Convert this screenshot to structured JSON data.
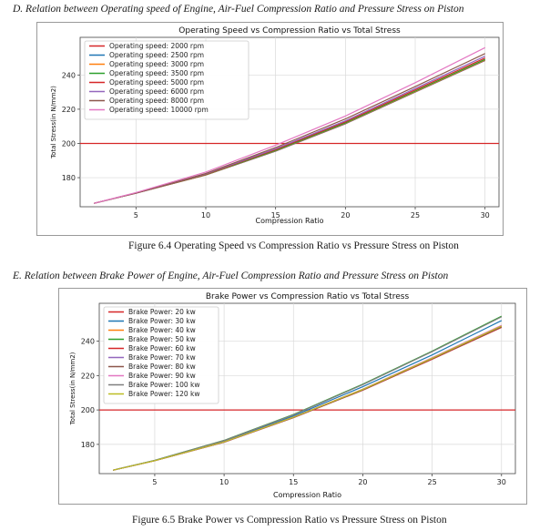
{
  "section_d": {
    "heading": "D.   Relation between Operating speed of Engine, Air-Fuel Compression Ratio and Pressure Stress on Piston",
    "caption": "Figure 6.4 Operating Speed vs Compression Ratio vs Pressure Stress on Piston"
  },
  "section_e": {
    "heading": "E.   Relation between Brake Power of Engine, Air-Fuel Compression Ratio and Pressure Stress on Piston",
    "caption": "Figure 6.5 Brake Power vs Compression Ratio vs Pressure Stress on Piston"
  },
  "chart_data": [
    {
      "type": "line",
      "title": "Operating Speed vs Compression Ratio vs Total Stress",
      "xlabel": "Compression Ratio",
      "ylabel": "Total Stress(in N/mm2)",
      "xlim": [
        1,
        31
      ],
      "ylim": [
        163,
        262
      ],
      "xticks": [
        5,
        10,
        15,
        20,
        25,
        30
      ],
      "yticks": [
        180,
        200,
        220,
        240
      ],
      "grid": true,
      "legend_position": "top-left",
      "x": [
        2,
        5,
        10,
        15,
        20,
        25,
        30
      ],
      "hline": {
        "y": 200,
        "color": "#d62728"
      },
      "series": [
        {
          "name": "Operating speed: 2000 rpm",
          "color": "#d62728",
          "values": [
            165,
            171,
            181.5,
            195.5,
            211.5,
            230,
            248.5
          ]
        },
        {
          "name": "Operating speed: 2500 rpm",
          "color": "#1f77b4",
          "values": [
            165,
            171,
            181.6,
            195.6,
            211.6,
            230.1,
            248.6
          ]
        },
        {
          "name": "Operating speed: 3000 rpm",
          "color": "#ff7f0e",
          "values": [
            165,
            171,
            181.7,
            195.8,
            211.8,
            230.3,
            248.8
          ]
        },
        {
          "name": "Operating speed: 3500 rpm",
          "color": "#2ca02c",
          "values": [
            165,
            171,
            181.8,
            196,
            212,
            230.6,
            249.1
          ]
        },
        {
          "name": "Operating speed: 5000 rpm",
          "color": "#d62728",
          "values": [
            165,
            171,
            182,
            196.4,
            212.6,
            231.3,
            249.9
          ]
        },
        {
          "name": "Operating speed: 6000 rpm",
          "color": "#9467bd",
          "values": [
            165,
            171,
            182.2,
            196.9,
            213.2,
            232.1,
            251
          ]
        },
        {
          "name": "Operating speed: 8000 rpm",
          "color": "#8c564b",
          "values": [
            165,
            171,
            182.5,
            197.6,
            214.3,
            233.2,
            252.5
          ]
        },
        {
          "name": "Operating speed: 10000 rpm",
          "color": "#e377c2",
          "values": [
            165,
            171.3,
            183.3,
            199,
            216,
            235.5,
            256
          ]
        }
      ]
    },
    {
      "type": "line",
      "title": "Brake Power vs Compression Ratio vs Total Stress",
      "xlabel": "Compression Ratio",
      "ylabel": "Total Stress(in N/mm2)",
      "xlim": [
        1,
        31
      ],
      "ylim": [
        163,
        262
      ],
      "xticks": [
        5,
        10,
        15,
        20,
        25,
        30
      ],
      "yticks": [
        180,
        200,
        220,
        240
      ],
      "grid": true,
      "legend_position": "top-left",
      "x": [
        2,
        5,
        10,
        15,
        20,
        25,
        30
      ],
      "hline": {
        "y": 200,
        "color": "#d62728"
      },
      "series": [
        {
          "name": "Brake Power: 20 kw",
          "color": "#d62728",
          "values": [
            165,
            170.5,
            181.2,
            195.5,
            211.5,
            229.5,
            248
          ]
        },
        {
          "name": "Brake Power: 30 kw",
          "color": "#1f77b4",
          "values": [
            165,
            170.6,
            181.8,
            196.5,
            213.5,
            232,
            252
          ]
        },
        {
          "name": "Brake Power: 40 kw",
          "color": "#ff7f0e",
          "values": [
            165,
            170.5,
            181.3,
            195.6,
            211.7,
            229.8,
            248.4
          ]
        },
        {
          "name": "Brake Power: 50 kw",
          "color": "#2ca02c",
          "values": [
            165,
            170.7,
            182.3,
            197.4,
            215,
            234.2,
            254.5
          ]
        },
        {
          "name": "Brake Power: 60 kw",
          "color": "#d62728",
          "values": [
            165,
            170.5,
            181.4,
            195.8,
            212,
            230.2,
            248.9
          ]
        },
        {
          "name": "Brake Power: 70 kw",
          "color": "#9467bd",
          "values": [
            165,
            170.5,
            181.3,
            195.7,
            211.8,
            230,
            248.6
          ]
        },
        {
          "name": "Brake Power: 80 kw",
          "color": "#8c564b",
          "values": [
            165,
            170.5,
            181.3,
            195.6,
            211.6,
            229.7,
            248.3
          ]
        },
        {
          "name": "Brake Power: 90 kw",
          "color": "#e377c2",
          "values": [
            165,
            170.5,
            181.4,
            195.9,
            212.1,
            230.4,
            249.2
          ]
        },
        {
          "name": "Brake Power: 100 kw",
          "color": "#7f7f7f",
          "values": [
            165,
            170.7,
            182.2,
            197.2,
            214.7,
            233.9,
            254.1
          ]
        },
        {
          "name": "Brake Power: 120 kw",
          "color": "#bcbd22",
          "values": [
            165,
            170.5,
            181.4,
            195.8,
            211.9,
            230.1,
            248.8
          ]
        }
      ]
    }
  ]
}
